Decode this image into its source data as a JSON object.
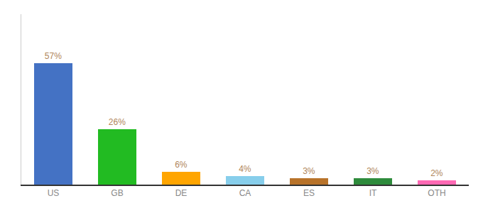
{
  "chart_data": {
    "type": "bar",
    "categories": [
      "US",
      "GB",
      "DE",
      "CA",
      "ES",
      "IT",
      "OTH"
    ],
    "values": [
      57,
      26,
      6,
      4,
      3,
      3,
      2
    ],
    "value_labels": [
      "57%",
      "26%",
      "6%",
      "4%",
      "3%",
      "3%",
      "2%"
    ],
    "colors": [
      "#4472c4",
      "#22bb22",
      "#ffa500",
      "#87ceeb",
      "#b8732a",
      "#2e8b3c",
      "#ff69b4"
    ],
    "ylim": [
      0,
      80
    ],
    "grid": false,
    "data_labels": true,
    "tick_labels": "x"
  }
}
